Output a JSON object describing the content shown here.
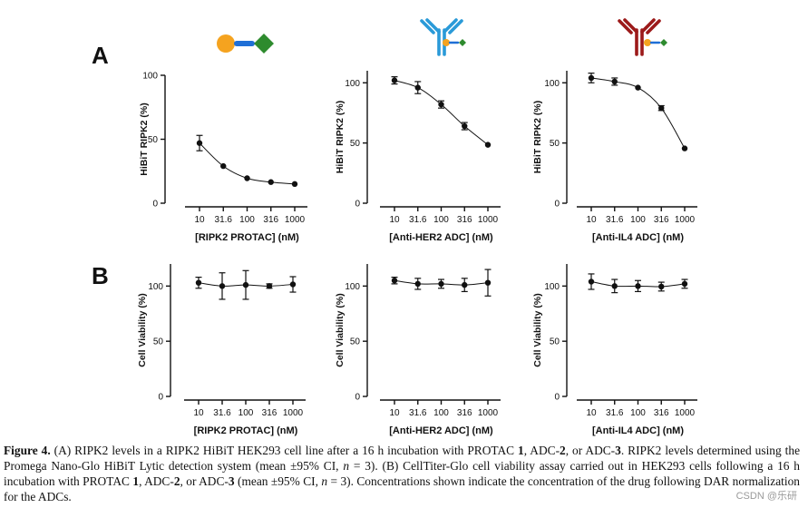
{
  "panel_labels": {
    "a": "A",
    "b": "B"
  },
  "colors": {
    "sphere_orange": "#f5a31f",
    "linker_blue": "#1f6fd6",
    "ligand_green": "#2e8b2e",
    "antibody_her2": "#2a9ad8",
    "antibody_il4": "#9c1a1a",
    "ink": "#111111"
  },
  "icons": [
    "protac-molecule-icon",
    "her2-adc-icon",
    "il4-adc-icon"
  ],
  "caption": {
    "label": "Figure 4.",
    "parts": [
      " (A) RIPK2 levels in a RIPK2 HiBiT HEK293 cell line after a 16 h incubation with PROTAC ",
      "1",
      ", ADC-",
      "2",
      ", or ADC-",
      "3",
      ". RIPK2 levels determined using the Promega Nano-Glo HiBiT Lytic detection system (mean ±95% CI, ",
      "n",
      " = 3). (B) CellTiter-Glo cell viability assay carried out in HEK293 cells following a 16 h incubation with PROTAC ",
      "1",
      ", ADC-",
      "2",
      ", or ADC-",
      "3",
      " (mean ±95% CI, ",
      "n",
      " = 3). Concentrations shown indicate the concentration of the drug following DAR normalization for the ADCs."
    ]
  },
  "watermark": "CSDN @乐研",
  "chart_data": [
    {
      "id": "a1",
      "panel": "A",
      "type": "scatter",
      "xlabel": "[RIPK2 PROTAC] (nM)",
      "ylabel": "HiBiT RIPK2 (%)",
      "categories": [
        "10",
        "31.6",
        "100",
        "316",
        "1000"
      ],
      "xscale": "log",
      "ylim": [
        0,
        100
      ],
      "yticks": [
        "0",
        "50",
        "100"
      ],
      "values": [
        47,
        29,
        19.5,
        16.5,
        15
      ],
      "errors": [
        6,
        0,
        0,
        0,
        0
      ],
      "fit_curve": true
    },
    {
      "id": "a2",
      "panel": "A",
      "type": "scatter",
      "xlabel": "[Anti-HER2 ADC] (nM)",
      "ylabel": "HiBiT RIPK2 (%)",
      "categories": [
        "10",
        "31.6",
        "100",
        "316",
        "1000"
      ],
      "xscale": "log",
      "ylim": [
        0,
        110
      ],
      "yticks": [
        "0",
        "50",
        "100"
      ],
      "values": [
        102,
        96,
        82,
        64,
        48.5
      ],
      "errors": [
        3,
        5,
        3,
        3,
        0
      ],
      "fit_curve": true
    },
    {
      "id": "a3",
      "panel": "A",
      "type": "scatter",
      "xlabel": "[Anti-IL4 ADC] (nM)",
      "ylabel": "HiBiT RIPK2 (%)",
      "categories": [
        "10",
        "31.6",
        "100",
        "316",
        "1000"
      ],
      "xscale": "log",
      "ylim": [
        0,
        110
      ],
      "yticks": [
        "0",
        "50",
        "100"
      ],
      "values": [
        104,
        101,
        96,
        79,
        45.5
      ],
      "errors": [
        4,
        3,
        0,
        2,
        0
      ],
      "fit_curve": true
    },
    {
      "id": "b1",
      "panel": "B",
      "type": "scatter",
      "xlabel": "[RIPK2 PROTAC] (nM)",
      "ylabel": "Cell Viability (%)",
      "categories": [
        "10",
        "31.6",
        "100",
        "316",
        "1000"
      ],
      "xscale": "log",
      "ylim": [
        0,
        120
      ],
      "yticks": [
        "0",
        "50",
        "100"
      ],
      "values": [
        103,
        100,
        101,
        100,
        101.5
      ],
      "errors": [
        5,
        12,
        13,
        2,
        7
      ],
      "fit_curve": true
    },
    {
      "id": "b2",
      "panel": "B",
      "type": "scatter",
      "xlabel": "[Anti-HER2 ADC] (nM)",
      "ylabel": "Cell Viability (%)",
      "categories": [
        "10",
        "31.6",
        "100",
        "316",
        "1000"
      ],
      "xscale": "log",
      "ylim": [
        0,
        120
      ],
      "yticks": [
        "0",
        "50",
        "100"
      ],
      "values": [
        105,
        102,
        102,
        101,
        103
      ],
      "errors": [
        3,
        5,
        4,
        6,
        12
      ],
      "fit_curve": true
    },
    {
      "id": "b3",
      "panel": "B",
      "type": "scatter",
      "xlabel": "[Anti-IL4 ADC] (nM)",
      "ylabel": "Cell Viability (%)",
      "categories": [
        "10",
        "31.6",
        "100",
        "316",
        "1000"
      ],
      "xscale": "log",
      "ylim": [
        0,
        120
      ],
      "yticks": [
        "0",
        "50",
        "100"
      ],
      "values": [
        104,
        100,
        100,
        99.5,
        102
      ],
      "errors": [
        7,
        6,
        5,
        4,
        4
      ],
      "fit_curve": true
    }
  ]
}
